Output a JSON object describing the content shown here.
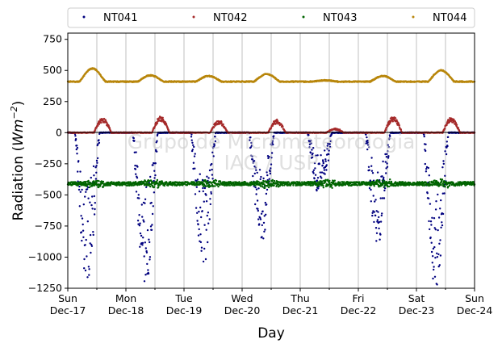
{
  "chart_data": {
    "type": "scatter",
    "xlabel": "Day",
    "ylabel_main": "Radiation (",
    "ylabel_unit": "Wm",
    "ylabel_exp": "−2",
    "ylabel_close": ")",
    "ylim": [
      -1250,
      800
    ],
    "yticks": [
      -1250,
      -1000,
      -750,
      -500,
      -250,
      0,
      250,
      500,
      750
    ],
    "ytick_labels": [
      "−1250",
      "−1000",
      "−750",
      "−500",
      "−250",
      "0",
      "250",
      "500",
      "750"
    ],
    "xlim": [
      "2017-12-17",
      "2017-12-24"
    ],
    "xticks": [
      {
        "day": "Sun",
        "date": "Dec-17"
      },
      {
        "day": "Mon",
        "date": "Dec-18"
      },
      {
        "day": "Tue",
        "date": "Dec-19"
      },
      {
        "day": "Wed",
        "date": "Dec-20"
      },
      {
        "day": "Thu",
        "date": "Dec-21"
      },
      {
        "day": "Fri",
        "date": "Dec-22"
      },
      {
        "day": "Sat",
        "date": "Dec-23"
      },
      {
        "day": "Sun",
        "date": "Dec-24"
      }
    ],
    "grid": "x-major-and-minor-vertical",
    "legend": "top, outside, 4 columns",
    "watermark": [
      "Grupo de Micrometeorologia",
      "IAG / USP"
    ],
    "series": [
      {
        "name": "NT041",
        "color": "#00007f",
        "baseline": 0,
        "night_min_by_day": [
          -1190,
          -1230,
          -1050,
          -850,
          -500,
          -870,
          -1220
        ]
      },
      {
        "name": "NT042",
        "color": "#a52a2a",
        "baseline": 0,
        "day_max_by_day": [
          110,
          120,
          90,
          95,
          30,
          120,
          110
        ]
      },
      {
        "name": "NT043",
        "color": "#006400",
        "baseline": -410,
        "values_range": [
          -445,
          -370
        ]
      },
      {
        "name": "NT044",
        "color": "#b8860b",
        "baseline": 410,
        "day_max_by_day": [
          515,
          460,
          455,
          470,
          420,
          455,
          500
        ]
      }
    ]
  }
}
